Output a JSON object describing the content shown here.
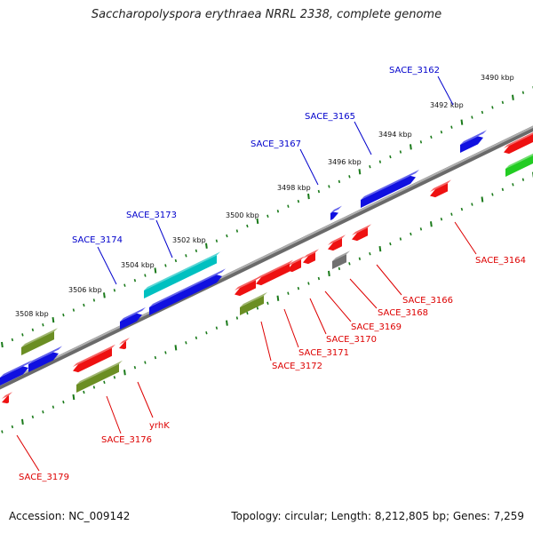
{
  "title": "Saccharopolyspora erythraea NRRL 2338, complete genome",
  "footer": {
    "accession": "Accession: NC_009142",
    "summary": "Topology: circular; Length: 8,212,805 bp; Genes: 7,259"
  },
  "colors": {
    "forward_cds": "#1010e0",
    "reverse_cds": "#ee1111",
    "rna": "#6b8e23",
    "other": "#00c0c0",
    "pseudo": "#707070",
    "green_gene": "#22cc22",
    "backbone": "#8c8c8c",
    "tick": "#1a7a1a",
    "forward_label": "#0000cc",
    "reverse_label": "#dd0000"
  },
  "scale_labels": [
    "3490 kbp",
    "3492 kbp",
    "3494 kbp",
    "3496 kbp",
    "3498 kbp",
    "3500 kbp",
    "3502 kbp",
    "3504 kbp",
    "3506 kbp",
    "3508 kbp"
  ],
  "forward_labels": [
    "SACE_3162",
    "SACE_3165",
    "SACE_3167",
    "SACE_3173",
    "SACE_3174"
  ],
  "reverse_labels": [
    "SACE_3164",
    "SACE_3166",
    "SACE_3168",
    "SACE_3169",
    "SACE_3170",
    "SACE_3171",
    "SACE_3172",
    "yrhK",
    "SACE_3176",
    "SACE_3179"
  ],
  "icons": [
    "forward-gene-arrow",
    "reverse-gene-arrow",
    "backbone-track"
  ]
}
